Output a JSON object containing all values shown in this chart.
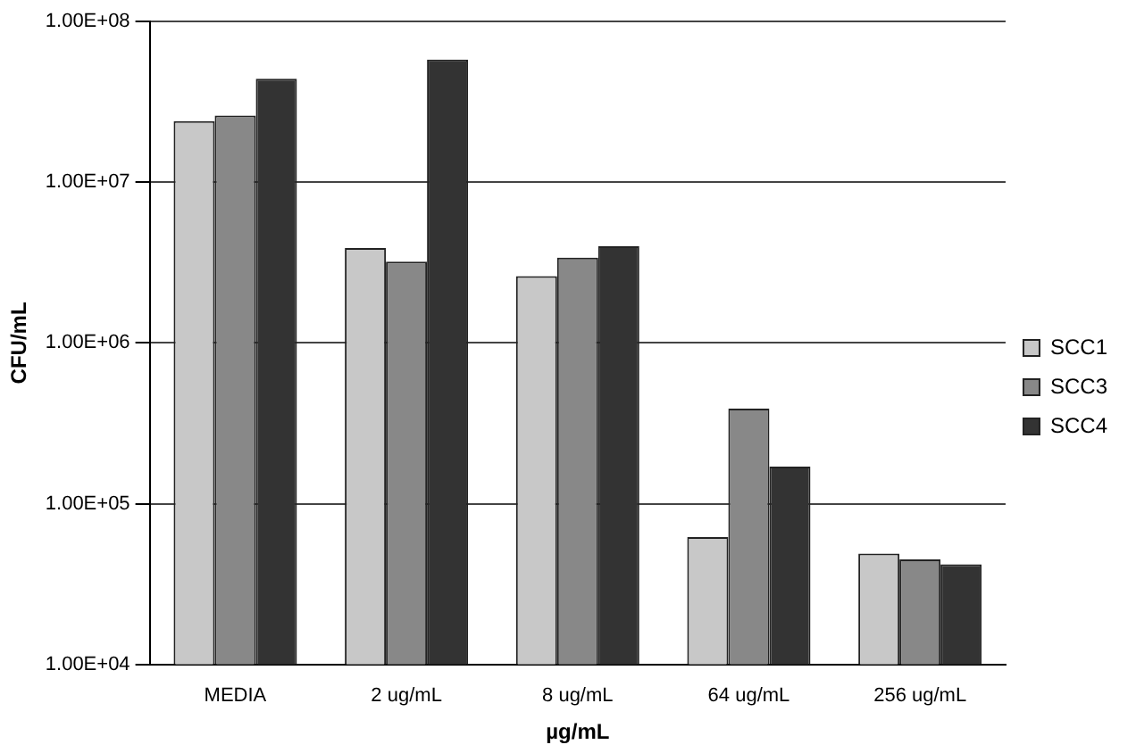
{
  "chart_data": {
    "type": "bar",
    "xlabel": "µg/mL",
    "ylabel": "CFU/mL",
    "categories": [
      "MEDIA",
      "2 ug/mL",
      "8 ug/mL",
      "64 ug/mL",
      "256 ug/mL"
    ],
    "series": [
      {
        "name": "SCC1",
        "color": "#c8c8c8",
        "values": [
          24000000,
          3900000,
          2600000,
          62000,
          49000
        ]
      },
      {
        "name": "SCC3",
        "color": "#888888",
        "values": [
          26000000,
          3200000,
          3400000,
          390000,
          45000
        ]
      },
      {
        "name": "SCC4",
        "color": "#333333",
        "values": [
          44000000,
          58000000,
          4000000,
          170000,
          42000
        ]
      }
    ],
    "log": "y",
    "ylim": [
      10000,
      100000000
    ],
    "yticks": [
      {
        "value": 10000,
        "label": "1.00E+04"
      },
      {
        "value": 100000,
        "label": "1.00E+05"
      },
      {
        "value": 1000000,
        "label": "1.00E+06"
      },
      {
        "value": 10000000,
        "label": "1.00E+07"
      },
      {
        "value": 100000000,
        "label": "1.00E+08"
      }
    ],
    "grid": "y",
    "legend": "right"
  }
}
